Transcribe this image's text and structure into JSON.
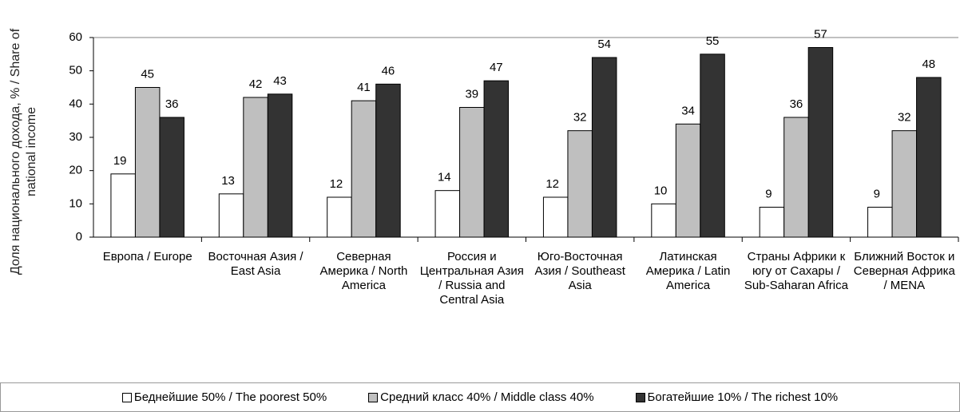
{
  "chart_data": {
    "type": "bar",
    "y_label": "Доля национального дохода, % / Share of national income",
    "categories": [
      "Европа / Europe",
      "Восточная Азия / East Asia",
      "Северная Америка / North America",
      "Россия и Центральная Азия / Russia and Central Asia",
      "Юго-Восточная Азия / Southeast Asia",
      "Латинская Америка / Latin America",
      "Страны Африки к югу от Сахары / Sub-Saharan Africa",
      "Ближний Восток и Северная Африка / MENA"
    ],
    "series": [
      {
        "name": "Беднейшие 50% / The poorest 50%",
        "color": "#ffffff",
        "values": [
          19,
          13,
          12,
          14,
          12,
          10,
          9,
          9
        ]
      },
      {
        "name": "Средний класс 40% / Middle class 40%",
        "color": "#bfbfbf",
        "values": [
          45,
          42,
          41,
          39,
          32,
          34,
          36,
          32
        ]
      },
      {
        "name": "Богатейшие 10% / The richest 10%",
        "color": "#333333",
        "values": [
          36,
          43,
          46,
          47,
          54,
          55,
          57,
          48
        ]
      }
    ],
    "ylim": [
      0,
      60
    ],
    "yticks": [
      0,
      10,
      20,
      30,
      40,
      50,
      60
    ],
    "grid": false
  }
}
